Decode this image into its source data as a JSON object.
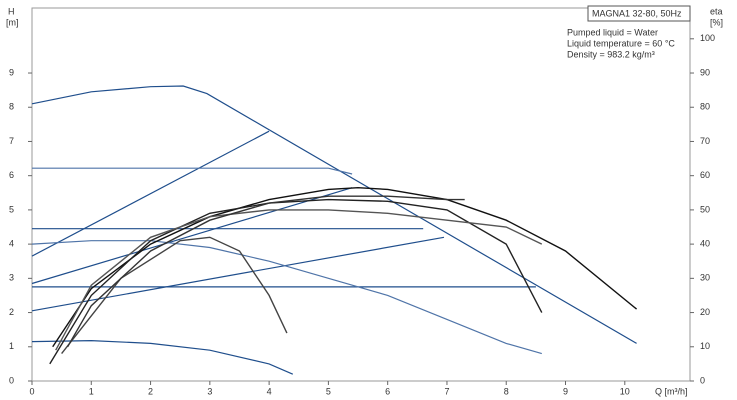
{
  "chart_data": {
    "type": "line",
    "title": "MAGNA1 32-80, 50Hz",
    "annotations": [
      "Pumped liquid = Water",
      "Liquid temperature = 60 °C",
      "Density = 983.2 kg/m³"
    ],
    "ylabel": "H",
    "yunit": "[m]",
    "y2label": "eta",
    "y2unit": "[%]",
    "xlabel": "Q [m³/h]",
    "xlim": [
      0,
      11.1
    ],
    "xticks": [
      0,
      1,
      2,
      3,
      4,
      5,
      6,
      7,
      8,
      9,
      10
    ],
    "ylim": [
      0,
      10.9
    ],
    "yticks": [
      0,
      1,
      2,
      3,
      4,
      5,
      6,
      7,
      8,
      9
    ],
    "y2lim": [
      0,
      109
    ],
    "y2ticks": [
      0,
      10,
      20,
      30,
      40,
      50,
      60,
      70,
      80,
      90,
      100
    ],
    "grid": false,
    "series": [
      {
        "color": "#1f4e8c",
        "x": [
          0,
          1,
          2,
          2.55,
          2.95,
          10.2
        ],
        "values": [
          8.1,
          8.45,
          8.6,
          8.62,
          8.4,
          1.1
        ]
      },
      {
        "color": "#1f4e8c",
        "x": [
          0,
          4
        ],
        "values": [
          3.65,
          7.3
        ]
      },
      {
        "color": "#4f74a8",
        "x": [
          0,
          5,
          5.4
        ],
        "values": [
          6.22,
          6.22,
          6.05
        ]
      },
      {
        "color": "#1f4e8c",
        "x": [
          0,
          5.4
        ],
        "values": [
          2.85,
          5.65
        ]
      },
      {
        "color": "#1f4e8c",
        "x": [
          0,
          6.6
        ],
        "values": [
          4.45,
          4.45
        ]
      },
      {
        "color": "#1f4e8c",
        "x": [
          0,
          6.95
        ],
        "values": [
          2.05,
          4.2
        ]
      },
      {
        "color": "#1f4e8c",
        "x": [
          0,
          8.5
        ],
        "values": [
          2.75,
          2.75
        ]
      },
      {
        "color": "#4f74a8",
        "x": [
          0,
          1,
          2,
          3,
          4,
          5,
          6,
          7,
          8,
          8.6
        ],
        "values": [
          4.0,
          4.1,
          4.1,
          3.9,
          3.5,
          3.0,
          2.5,
          1.8,
          1.1,
          0.8
        ]
      },
      {
        "color": "#1f4e8c",
        "x": [
          0,
          1,
          2,
          3,
          4,
          4.4
        ],
        "values": [
          1.15,
          1.18,
          1.1,
          0.9,
          0.5,
          0.2
        ]
      },
      {
        "color": "#111111",
        "axis": "y2",
        "x": [
          0.35,
          1,
          2,
          3,
          4,
          5,
          5.5,
          6,
          7,
          8,
          9,
          10.2
        ],
        "values": [
          10,
          27,
          40,
          48,
          53,
          56,
          56.5,
          56,
          53,
          47,
          38,
          21
        ]
      },
      {
        "color": "#222222",
        "axis": "y2",
        "x": [
          0.3,
          1,
          2,
          3,
          4,
          5,
          6,
          7,
          8,
          8.6
        ],
        "values": [
          5,
          25,
          41,
          49,
          52,
          53,
          52.5,
          50,
          40,
          20
        ]
      },
      {
        "color": "#444444",
        "axis": "y2",
        "x": [
          0.5,
          1.5,
          2.5,
          3,
          3.5,
          4,
          4.3
        ],
        "values": [
          8,
          30,
          41,
          42,
          38,
          25,
          14
        ]
      },
      {
        "color": "#555555",
        "axis": "y2",
        "x": [
          0.4,
          1,
          2,
          3,
          4,
          5,
          6,
          7,
          8,
          8.6
        ],
        "values": [
          9,
          28,
          42,
          48,
          50,
          50,
          49,
          47,
          45,
          40
        ]
      },
      {
        "color": "#333333",
        "axis": "y2",
        "x": [
          0.6,
          1,
          2,
          3,
          4,
          5,
          6,
          7,
          7.3
        ],
        "values": [
          10,
          22,
          38,
          47,
          52,
          54,
          54,
          53,
          53
        ]
      }
    ]
  }
}
